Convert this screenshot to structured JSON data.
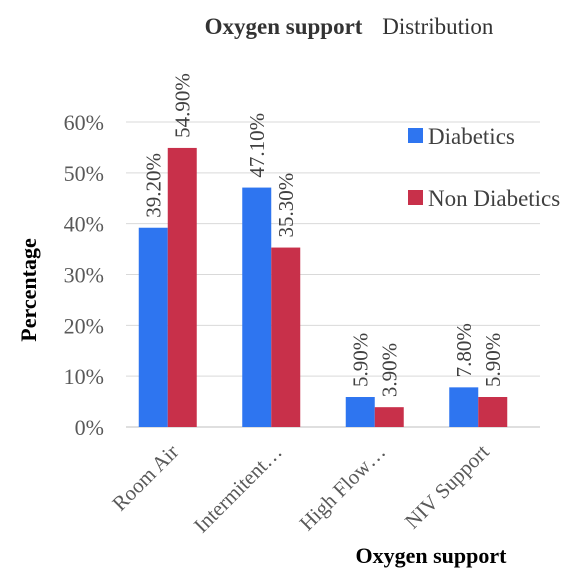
{
  "chart_data": {
    "type": "bar",
    "title": {
      "bold": "Oxygen support",
      "regular": "Distribution"
    },
    "xlabel": "Oxygen support",
    "ylabel": "Percentage",
    "categories": [
      "Room Air",
      "Intermitent…",
      "High Flow…",
      "NIV Support"
    ],
    "series": [
      {
        "name": "Diabetics",
        "color": "#2e75f0",
        "values": [
          39.2,
          47.1,
          5.9,
          7.8
        ],
        "labels": [
          "39.20%",
          "47.10%",
          "5.90%",
          "7.80%"
        ]
      },
      {
        "name": "Non Diabetics",
        "color": "#c8304a",
        "values": [
          54.9,
          35.3,
          3.9,
          5.9
        ],
        "labels": [
          "54.90%",
          "35.30%",
          "3.90%",
          "5.90%"
        ]
      }
    ],
    "ylim": [
      0,
      60
    ],
    "yticks": [
      0,
      10,
      20,
      30,
      40,
      50,
      60
    ],
    "ytick_labels": [
      "0%",
      "10%",
      "20%",
      "30%",
      "40%",
      "50%",
      "60%"
    ],
    "grid": true,
    "legend_position": "top-right"
  }
}
